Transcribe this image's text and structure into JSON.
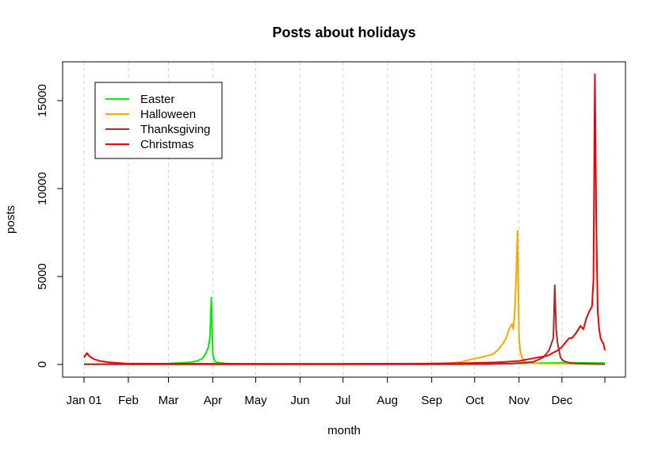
{
  "chart_data": {
    "type": "line",
    "title": "Posts about holidays",
    "xlabel": "month",
    "ylabel": "posts",
    "x_ticks": [
      "Jan 01",
      "Feb",
      "Mar",
      "Apr",
      "May",
      "Jun",
      "Jul",
      "Aug",
      "Sep",
      "Oct",
      "Nov",
      "Dec"
    ],
    "x_tick_days": [
      1,
      32,
      60,
      91,
      121,
      152,
      182,
      213,
      244,
      274,
      305,
      335
    ],
    "xlim": [
      1,
      365
    ],
    "y_ticks": [
      0,
      5000,
      10000,
      15000
    ],
    "ylim": [
      -600,
      17000
    ],
    "grid": "vertical dashed at month starts",
    "legend_position": "top-left",
    "series": [
      {
        "name": "Easter",
        "color": "#00ee00",
        "x": [
          1,
          30,
          60,
          75,
          80,
          84,
          86,
          88,
          89,
          90,
          91,
          92,
          93,
          94,
          96,
          100,
          110,
          130,
          160,
          200,
          250,
          280,
          300,
          320,
          340,
          365
        ],
        "y": [
          20,
          30,
          50,
          120,
          200,
          350,
          600,
          1000,
          1500,
          3800,
          600,
          250,
          150,
          120,
          90,
          60,
          40,
          30,
          30,
          30,
          40,
          50,
          50,
          80,
          100,
          80
        ]
      },
      {
        "name": "Halloween",
        "color": "#ffa500",
        "x": [
          1,
          60,
          120,
          180,
          240,
          255,
          265,
          272,
          278,
          283,
          287,
          290,
          294,
          296,
          298,
          300,
          301,
          302,
          303,
          304,
          305,
          306,
          307,
          309,
          312,
          320,
          340,
          365
        ],
        "y": [
          20,
          20,
          20,
          20,
          30,
          60,
          150,
          300,
          400,
          500,
          600,
          800,
          1200,
          1500,
          2000,
          2300,
          2000,
          3000,
          5000,
          7600,
          1500,
          700,
          400,
          150,
          80,
          50,
          40,
          30
        ]
      },
      {
        "name": "Thanksgiving",
        "color": "#a52a2a",
        "x": [
          1,
          60,
          120,
          180,
          240,
          280,
          300,
          315,
          322,
          326,
          329,
          330,
          331,
          332,
          333,
          334,
          336,
          340,
          345,
          355,
          365
        ],
        "y": [
          10,
          10,
          10,
          10,
          10,
          20,
          50,
          150,
          400,
          800,
          1500,
          4500,
          2000,
          1200,
          800,
          400,
          200,
          100,
          60,
          30,
          20
        ]
      },
      {
        "name": "Christmas",
        "color": "#ee0000",
        "x": [
          1,
          3,
          5,
          8,
          12,
          18,
          30,
          60,
          120,
          180,
          240,
          270,
          290,
          305,
          315,
          325,
          332,
          335,
          340,
          342,
          345,
          348,
          350,
          352,
          354,
          356,
          357,
          358,
          359,
          360,
          361,
          362,
          363,
          364,
          365
        ],
        "y": [
          400,
          650,
          450,
          300,
          200,
          120,
          60,
          40,
          30,
          30,
          50,
          80,
          120,
          200,
          350,
          500,
          800,
          1000,
          1500,
          1500,
          1800,
          2200,
          2000,
          2600,
          3000,
          3300,
          4800,
          16500,
          8000,
          3000,
          2000,
          1500,
          1300,
          1200,
          800
        ]
      }
    ]
  }
}
